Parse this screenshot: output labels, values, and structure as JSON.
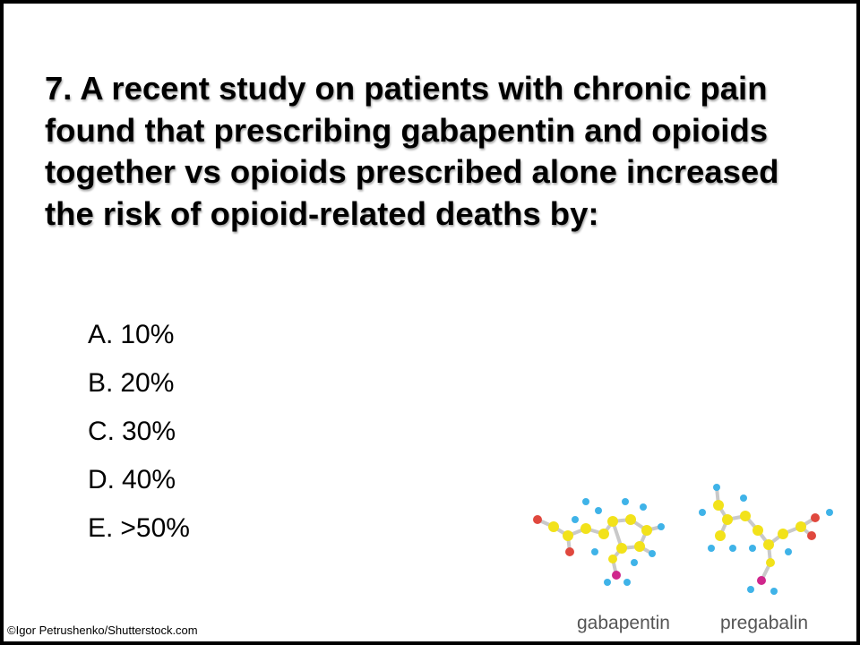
{
  "question": {
    "text": "7. A recent study on patients with chronic pain found that prescribing gabapentin and opioids together vs opioids prescribed alone increased the risk of opioid-related deaths by:"
  },
  "options": [
    {
      "letter": "A.",
      "value": "10%"
    },
    {
      "letter": "B.",
      "value": "20%"
    },
    {
      "letter": "C.",
      "value": "30%"
    },
    {
      "letter": "D.",
      "value": "40%"
    },
    {
      "letter": "E.",
      "value": ">50%"
    }
  ],
  "image": {
    "labels": [
      "gabapentin",
      "pregabalin"
    ],
    "credit": "©Igor Petrushenko/Shutterstock.com"
  },
  "colors": {
    "carbon": "#f2e21a",
    "hydrogen": "#3fb3e8",
    "oxygen": "#e0483e",
    "nitrogen": "#d0268c",
    "bond": "#c9c9c9"
  }
}
